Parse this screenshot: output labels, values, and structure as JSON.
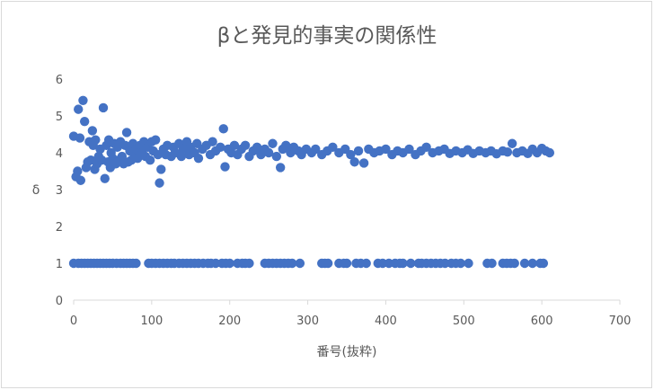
{
  "chart_data": {
    "type": "scatter",
    "title": "βと発見的事実の関係性",
    "xlabel": "番号(抜粋)",
    "ylabel": "δ",
    "xlim": [
      0,
      700
    ],
    "ylim": [
      0,
      6
    ],
    "xticks": [
      0,
      100,
      200,
      300,
      400,
      500,
      600,
      700
    ],
    "yticks": [
      0,
      1,
      2,
      3,
      4,
      5,
      6
    ],
    "grid": false,
    "legend": "none",
    "marker_color": "#4472C4",
    "series": [
      {
        "points": [
          [
            0,
            4.45
          ],
          [
            3,
            3.35
          ],
          [
            5,
            3.5
          ],
          [
            6,
            5.18
          ],
          [
            8,
            4.4
          ],
          [
            9,
            3.25
          ],
          [
            12,
            5.42
          ],
          [
            14,
            4.85
          ],
          [
            16,
            3.6
          ],
          [
            18,
            3.75
          ],
          [
            20,
            4.3
          ],
          [
            22,
            3.8
          ],
          [
            24,
            4.6
          ],
          [
            25,
            4.2
          ],
          [
            27,
            3.55
          ],
          [
            28,
            4.35
          ],
          [
            30,
            3.7
          ],
          [
            32,
            3.9
          ],
          [
            34,
            4.1
          ],
          [
            36,
            3.8
          ],
          [
            38,
            5.22
          ],
          [
            40,
            3.3
          ],
          [
            42,
            4.2
          ],
          [
            44,
            3.75
          ],
          [
            45,
            4.35
          ],
          [
            47,
            3.6
          ],
          [
            48,
            4.0
          ],
          [
            50,
            3.85
          ],
          [
            52,
            4.25
          ],
          [
            54,
            3.7
          ],
          [
            56,
            4.15
          ],
          [
            58,
            3.8
          ],
          [
            60,
            4.3
          ],
          [
            62,
            3.9
          ],
          [
            64,
            3.7
          ],
          [
            66,
            4.2
          ],
          [
            68,
            4.55
          ],
          [
            70,
            3.75
          ],
          [
            72,
            4.05
          ],
          [
            74,
            3.8
          ],
          [
            76,
            4.25
          ],
          [
            78,
            3.9
          ],
          [
            80,
            4.1
          ],
          [
            82,
            3.85
          ],
          [
            85,
            4.2
          ],
          [
            88,
            4.0
          ],
          [
            90,
            4.3
          ],
          [
            92,
            3.9
          ],
          [
            95,
            4.15
          ],
          [
            98,
            3.8
          ],
          [
            100,
            4.3
          ],
          [
            102,
            4.05
          ],
          [
            105,
            4.35
          ],
          [
            108,
            3.95
          ],
          [
            110,
            3.18
          ],
          [
            112,
            3.55
          ],
          [
            115,
            4.1
          ],
          [
            118,
            3.95
          ],
          [
            120,
            4.2
          ],
          [
            125,
            3.9
          ],
          [
            128,
            4.15
          ],
          [
            130,
            4.0
          ],
          [
            135,
            4.25
          ],
          [
            138,
            3.9
          ],
          [
            140,
            4.1
          ],
          [
            145,
            4.3
          ],
          [
            148,
            3.95
          ],
          [
            150,
            4.15
          ],
          [
            155,
            4.0
          ],
          [
            158,
            4.25
          ],
          [
            160,
            3.85
          ],
          [
            165,
            4.1
          ],
          [
            170,
            4.2
          ],
          [
            175,
            3.95
          ],
          [
            178,
            4.3
          ],
          [
            182,
            4.05
          ],
          [
            188,
            4.15
          ],
          [
            192,
            4.65
          ],
          [
            194,
            3.62
          ],
          [
            198,
            4.1
          ],
          [
            202,
            4.0
          ],
          [
            206,
            4.2
          ],
          [
            210,
            3.95
          ],
          [
            215,
            4.1
          ],
          [
            220,
            4.2
          ],
          [
            225,
            3.9
          ],
          [
            230,
            4.05
          ],
          [
            235,
            4.15
          ],
          [
            240,
            3.95
          ],
          [
            245,
            4.1
          ],
          [
            250,
            4.0
          ],
          [
            255,
            4.25
          ],
          [
            260,
            3.9
          ],
          [
            265,
            3.6
          ],
          [
            268,
            4.1
          ],
          [
            272,
            4.2
          ],
          [
            278,
            4.0
          ],
          [
            282,
            4.15
          ],
          [
            288,
            4.05
          ],
          [
            292,
            3.95
          ],
          [
            298,
            4.1
          ],
          [
            305,
            4.0
          ],
          [
            310,
            4.1
          ],
          [
            318,
            3.95
          ],
          [
            325,
            4.05
          ],
          [
            332,
            4.15
          ],
          [
            340,
            4.0
          ],
          [
            348,
            4.1
          ],
          [
            355,
            3.95
          ],
          [
            360,
            3.75
          ],
          [
            365,
            4.05
          ],
          [
            372,
            3.72
          ],
          [
            378,
            4.1
          ],
          [
            385,
            4.0
          ],
          [
            392,
            4.05
          ],
          [
            400,
            4.1
          ],
          [
            408,
            3.95
          ],
          [
            415,
            4.05
          ],
          [
            422,
            4.0
          ],
          [
            430,
            4.1
          ],
          [
            438,
            3.95
          ],
          [
            445,
            4.05
          ],
          [
            452,
            4.15
          ],
          [
            460,
            4.0
          ],
          [
            468,
            4.05
          ],
          [
            475,
            4.1
          ],
          [
            482,
            3.98
          ],
          [
            490,
            4.05
          ],
          [
            498,
            4.0
          ],
          [
            505,
            4.08
          ],
          [
            512,
            3.98
          ],
          [
            520,
            4.05
          ],
          [
            528,
            4.0
          ],
          [
            535,
            4.05
          ],
          [
            542,
            3.97
          ],
          [
            550,
            4.05
          ],
          [
            556,
            4.02
          ],
          [
            562,
            4.25
          ],
          [
            568,
            4.0
          ],
          [
            575,
            4.05
          ],
          [
            582,
            3.98
          ],
          [
            588,
            4.1
          ],
          [
            594,
            4.0
          ],
          [
            600,
            4.12
          ],
          [
            605,
            4.05
          ],
          [
            610,
            4.0
          ],
          [
            0,
            1
          ],
          [
            6,
            1
          ],
          [
            10,
            1
          ],
          [
            14,
            1
          ],
          [
            18,
            1
          ],
          [
            22,
            1
          ],
          [
            26,
            1
          ],
          [
            30,
            1
          ],
          [
            34,
            1
          ],
          [
            38,
            1
          ],
          [
            42,
            1
          ],
          [
            46,
            1
          ],
          [
            50,
            1
          ],
          [
            55,
            1
          ],
          [
            60,
            1
          ],
          [
            64,
            1
          ],
          [
            68,
            1
          ],
          [
            72,
            1
          ],
          [
            76,
            1
          ],
          [
            80,
            1
          ],
          [
            96,
            1
          ],
          [
            100,
            1
          ],
          [
            105,
            1
          ],
          [
            110,
            1
          ],
          [
            115,
            1
          ],
          [
            120,
            1
          ],
          [
            125,
            1
          ],
          [
            129,
            1
          ],
          [
            135,
            1
          ],
          [
            140,
            1
          ],
          [
            145,
            1
          ],
          [
            150,
            1
          ],
          [
            155,
            1
          ],
          [
            160,
            1
          ],
          [
            166,
            1
          ],
          [
            172,
            1
          ],
          [
            176,
            1
          ],
          [
            182,
            1
          ],
          [
            190,
            1
          ],
          [
            195,
            1
          ],
          [
            200,
            1
          ],
          [
            210,
            1
          ],
          [
            216,
            1
          ],
          [
            220,
            1
          ],
          [
            225,
            1
          ],
          [
            245,
            1
          ],
          [
            250,
            1
          ],
          [
            255,
            1
          ],
          [
            260,
            1
          ],
          [
            265,
            1
          ],
          [
            270,
            1
          ],
          [
            275,
            1
          ],
          [
            280,
            1
          ],
          [
            290,
            1
          ],
          [
            318,
            1
          ],
          [
            322,
            1
          ],
          [
            326,
            1
          ],
          [
            340,
            1
          ],
          [
            346,
            1
          ],
          [
            350,
            1
          ],
          [
            362,
            1
          ],
          [
            368,
            1
          ],
          [
            375,
            1
          ],
          [
            390,
            1
          ],
          [
            396,
            1
          ],
          [
            404,
            1
          ],
          [
            412,
            1
          ],
          [
            418,
            1
          ],
          [
            422,
            1
          ],
          [
            432,
            1
          ],
          [
            442,
            1
          ],
          [
            446,
            1
          ],
          [
            452,
            1
          ],
          [
            458,
            1
          ],
          [
            464,
            1
          ],
          [
            470,
            1
          ],
          [
            476,
            1
          ],
          [
            484,
            1
          ],
          [
            490,
            1
          ],
          [
            496,
            1
          ],
          [
            506,
            1
          ],
          [
            530,
            1
          ],
          [
            536,
            1
          ],
          [
            550,
            1
          ],
          [
            555,
            1
          ],
          [
            560,
            1
          ],
          [
            565,
            1
          ],
          [
            578,
            1
          ],
          [
            588,
            1
          ],
          [
            598,
            1
          ],
          [
            602,
            1
          ]
        ]
      }
    ]
  }
}
